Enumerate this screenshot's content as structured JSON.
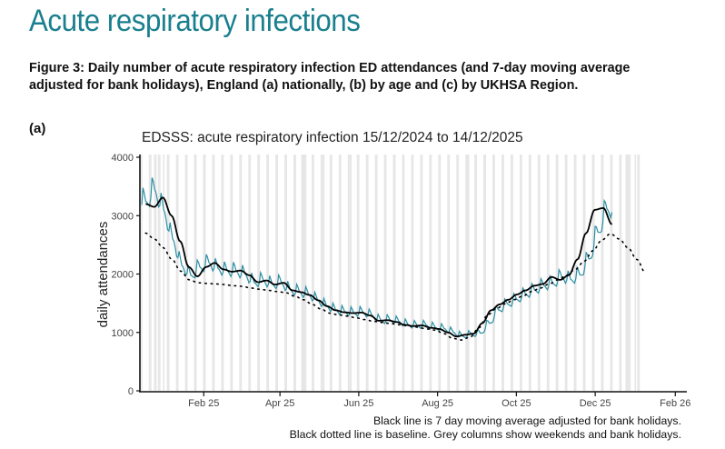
{
  "page": {
    "title": "Acute respiratory infections",
    "figure_caption": "Figure 3: Daily number of acute respiratory infection ED attendances (and 7-day moving average adjusted for bank holidays), England (a) nationally, (b) by age and (c) by UKHSA Region.",
    "panel_label": "(a)"
  },
  "colors": {
    "title": "#1a7f8e",
    "daily_line": "#2b8ea3",
    "moving_average": "#000000",
    "baseline": "#000000",
    "grey_columns": "#e6e6e6"
  },
  "chart_data": {
    "type": "line",
    "title": "EDSSS: acute respiratory infection 15/12/2024 to 14/12/2025",
    "xlabel": "",
    "ylabel": "daily attendances",
    "start_date": "2024-12-15",
    "end_date": "2025-12-14",
    "x_range": [
      "2024-12-15",
      "2026-02-05"
    ],
    "ylim": [
      0,
      4000
    ],
    "y_ticks": [
      0,
      1000,
      2000,
      3000,
      4000
    ],
    "y_tick_labels": [
      "0",
      "1000",
      "2000",
      "3000",
      "4000"
    ],
    "x_ticks": [
      "2025-02-01",
      "2025-04-01",
      "2025-06-01",
      "2025-08-01",
      "2025-10-01",
      "2025-12-01",
      "2026-02-01"
    ],
    "x_tick_labels": [
      "Feb 25",
      "Apr 25",
      "Jun 25",
      "Aug 25",
      "Oct 25",
      "Dec 25",
      "Feb 26"
    ],
    "grid": false,
    "notes": [
      "Black line is 7 day moving average adjusted for bank holidays.",
      "Black dotted line is baseline. Grey columns show weekends and bank holidays."
    ],
    "grey_columns_end_date": "2026-01-09",
    "bank_holidays": [
      "2024-12-25",
      "2024-12-26",
      "2025-01-01",
      "2025-04-18",
      "2025-04-21",
      "2025-05-05",
      "2025-05-26",
      "2025-08-25",
      "2025-12-25",
      "2025-12-26",
      "2026-01-01"
    ],
    "series": [
      {
        "name": "Daily attendances",
        "style": "teal line",
        "weekly_7day_mean": [
          3250,
          3450,
          3100,
          2600,
          2150,
          1980,
          2120,
          2200,
          2100,
          2060,
          2060,
          2000,
          1860,
          1900,
          1830,
          1860,
          1730,
          1700,
          1660,
          1560,
          1460,
          1390,
          1360,
          1340,
          1350,
          1300,
          1210,
          1220,
          1190,
          1140,
          1120,
          1130,
          1090,
          1070,
          1010,
          940,
          970,
          990,
          1160,
          1390,
          1490,
          1570,
          1660,
          1730,
          1810,
          1840,
          1960,
          1910,
          1990,
          2260,
          2720,
          3120
        ],
        "weekly_pattern": [
          1.07,
          1.04,
          1.0,
          0.99,
          0.97,
          0.95,
          0.98
        ],
        "values_note": "daily value = weekly_7day_mean × weekly_pattern[weekday], first day Sunday 15/12/2024"
      },
      {
        "name": "7 day moving average",
        "style": "black solid line",
        "start_date": "2024-12-18",
        "weekly_values": [
          3200,
          3150,
          3310,
          3000,
          2560,
          2120,
          1960,
          2120,
          2190,
          2080,
          2040,
          2060,
          1980,
          1860,
          1890,
          1820,
          1850,
          1720,
          1690,
          1640,
          1550,
          1450,
          1380,
          1345,
          1330,
          1340,
          1290,
          1200,
          1210,
          1180,
          1130,
          1110,
          1120,
          1080,
          1060,
          1000,
          930,
          960,
          980,
          1160,
          1380,
          1480,
          1560,
          1650,
          1720,
          1800,
          1830,
          1950,
          1900,
          1980,
          2250,
          2700,
          3100,
          3130,
          2850
        ]
      },
      {
        "name": "Baseline",
        "style": "black dotted line",
        "start_date": "2024-12-18",
        "end_date": "2026-01-09",
        "weekly_values": [
          2700,
          2600,
          2450,
          2250,
          2050,
          1900,
          1850,
          1840,
          1830,
          1820,
          1800,
          1790,
          1760,
          1740,
          1720,
          1700,
          1680,
          1620,
          1560,
          1480,
          1400,
          1330,
          1300,
          1280,
          1250,
          1220,
          1190,
          1170,
          1150,
          1130,
          1110,
          1090,
          1060,
          1040,
          980,
          900,
          870,
          920,
          1080,
          1300,
          1410,
          1490,
          1560,
          1620,
          1700,
          1760,
          1830,
          1900,
          1980,
          2080,
          2220,
          2400,
          2580,
          2690,
          2600,
          2450,
          2250,
          2020
        ]
      }
    ]
  }
}
